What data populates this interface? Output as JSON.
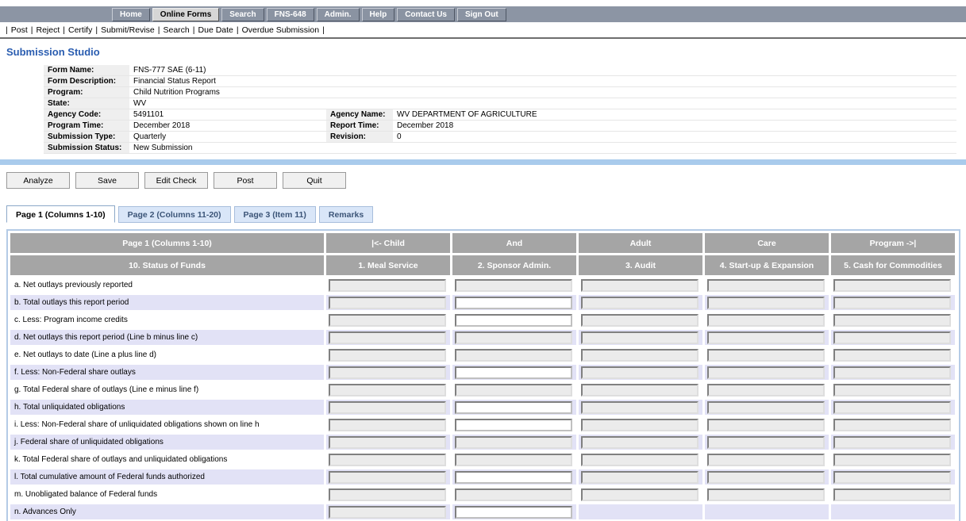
{
  "page_title": "Submission Studio",
  "top_nav": {
    "items": [
      {
        "label": "Home",
        "active": false
      },
      {
        "label": "Online Forms",
        "active": true
      },
      {
        "label": "Search",
        "active": false
      },
      {
        "label": "FNS-648",
        "active": false
      },
      {
        "label": "Admin.",
        "active": false
      },
      {
        "label": "Help",
        "active": false
      },
      {
        "label": "Contact Us",
        "active": false
      },
      {
        "label": "Sign Out",
        "active": false
      }
    ]
  },
  "action_menu": {
    "separator": "|",
    "items": [
      "Post",
      "Reject",
      "Certify",
      "Submit/Revise",
      "Search",
      "Due Date",
      "Overdue Submission"
    ]
  },
  "form_info": {
    "rows": [
      {
        "label": "Form Name:",
        "value": "FNS-777 SAE (6-11)"
      },
      {
        "label": "Form Description:",
        "value": "Financial Status Report"
      },
      {
        "label": "Program:",
        "value": "Child Nutrition Programs"
      },
      {
        "label": "State:",
        "value": "WV"
      },
      {
        "label": "Agency Code:",
        "value": "5491101",
        "label2": "Agency Name:",
        "value2": "WV DEPARTMENT OF AGRICULTURE"
      },
      {
        "label": "Program Time:",
        "value": "December 2018",
        "label2": "Report Time:",
        "value2": "December 2018"
      },
      {
        "label": "Submission Type:",
        "value": "Quarterly",
        "label2": "Revision:",
        "value2": "0"
      },
      {
        "label": "Submission Status:",
        "value": "New Submission"
      }
    ]
  },
  "toolbar": {
    "buttons": [
      "Analyze",
      "Save",
      "Edit Check",
      "Post",
      "Quit"
    ]
  },
  "tabs": [
    {
      "label": "Page 1 (Columns 1-10)",
      "active": true
    },
    {
      "label": "Page 2 (Columns 11-20)",
      "active": false
    },
    {
      "label": "Page 3 (Item 11)",
      "active": false
    },
    {
      "label": "Remarks",
      "active": false
    }
  ],
  "grid": {
    "header_row1": [
      "Page 1 (Columns 1-10)",
      "|<- Child",
      "And",
      "Adult",
      "Care",
      "Program ->|"
    ],
    "header_row2": [
      "10. Status of Funds",
      "1. Meal Service",
      "2. Sponsor Admin.",
      "3. Audit",
      "4. Start-up & Expansion",
      "5. Cash for Commodities"
    ],
    "rows": [
      {
        "label": "a. Net outlays previously reported",
        "inputs": [
          "disabled",
          "disabled",
          "disabled",
          "disabled",
          "disabled"
        ]
      },
      {
        "label": "b. Total outlays this report period",
        "inputs": [
          "disabled",
          "enabled",
          "disabled",
          "disabled",
          "disabled"
        ]
      },
      {
        "label": "c. Less: Program income credits",
        "inputs": [
          "disabled",
          "enabled",
          "disabled",
          "disabled",
          "disabled"
        ]
      },
      {
        "label": "d. Net outlays this report period (Line b minus line c)",
        "inputs": [
          "disabled",
          "disabled",
          "disabled",
          "disabled",
          "disabled"
        ]
      },
      {
        "label": "e. Net outlays to date (Line a plus line d)",
        "inputs": [
          "disabled",
          "disabled",
          "disabled",
          "disabled",
          "disabled"
        ]
      },
      {
        "label": "f. Less: Non-Federal share outlays",
        "inputs": [
          "disabled",
          "enabled",
          "disabled",
          "disabled",
          "disabled"
        ]
      },
      {
        "label": "g. Total Federal share of outlays (Line e minus line f)",
        "inputs": [
          "disabled",
          "disabled",
          "disabled",
          "disabled",
          "disabled"
        ]
      },
      {
        "label": "h. Total unliquidated obligations",
        "inputs": [
          "disabled",
          "enabled",
          "disabled",
          "disabled",
          "disabled"
        ]
      },
      {
        "label": "i. Less: Non-Federal share of unliquidated obligations shown on line h",
        "inputs": [
          "disabled",
          "enabled",
          "disabled",
          "disabled",
          "disabled"
        ]
      },
      {
        "label": "j. Federal share of unliquidated obligations",
        "inputs": [
          "disabled",
          "disabled",
          "disabled",
          "disabled",
          "disabled"
        ]
      },
      {
        "label": "k. Total Federal share of outlays and unliquidated obligations",
        "inputs": [
          "disabled",
          "disabled",
          "disabled",
          "disabled",
          "disabled"
        ]
      },
      {
        "label": "l. Total cumulative amount of Federal funds authorized",
        "inputs": [
          "disabled",
          "enabled",
          "disabled",
          "disabled",
          "disabled"
        ]
      },
      {
        "label": "m. Unobligated balance of Federal funds",
        "inputs": [
          "disabled",
          "disabled",
          "disabled",
          "disabled",
          "disabled"
        ]
      },
      {
        "label": "n. Advances Only",
        "inputs": [
          "disabled",
          "enabled",
          "none",
          "none",
          "none"
        ]
      }
    ],
    "input_value": ""
  },
  "colors": {
    "nav_bar": "#8c95a4",
    "header_cell": "#a5a5a5",
    "row_alt": "#e2e2f6",
    "divider_blue": "#a9cbec",
    "title_blue": "#2a5db0"
  }
}
